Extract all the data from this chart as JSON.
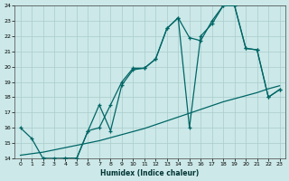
{
  "xlabel": "Humidex (Indice chaleur)",
  "background_color": "#cce8e8",
  "grid_color": "#aacccc",
  "line_color": "#006666",
  "xlim": [
    -0.5,
    23.5
  ],
  "ylim": [
    14,
    24
  ],
  "xticks": [
    0,
    1,
    2,
    3,
    4,
    5,
    6,
    7,
    8,
    9,
    10,
    11,
    12,
    13,
    14,
    15,
    16,
    17,
    18,
    19,
    20,
    21,
    22,
    23
  ],
  "yticks": [
    14,
    15,
    16,
    17,
    18,
    19,
    20,
    21,
    22,
    23,
    24
  ],
  "line1_x": [
    0,
    1,
    2,
    3,
    4,
    5,
    6,
    7,
    8,
    9,
    10,
    11,
    12,
    13,
    14,
    15,
    16,
    17,
    18,
    19,
    20,
    21,
    22,
    23
  ],
  "line1_y": [
    16.0,
    15.3,
    14.0,
    14.0,
    14.0,
    14.0,
    15.8,
    16.0,
    17.5,
    19.0,
    19.9,
    19.9,
    20.5,
    22.5,
    23.2,
    21.9,
    21.7,
    23.0,
    24.0,
    24.0,
    21.2,
    21.1,
    18.0,
    18.5
  ],
  "line2_x": [
    2,
    3,
    4,
    5,
    6,
    7,
    8,
    9,
    10,
    11,
    12,
    13,
    14,
    15,
    16,
    17,
    18,
    19,
    20,
    21,
    22,
    23
  ],
  "line2_y": [
    14.0,
    13.9,
    14.0,
    14.0,
    15.8,
    17.5,
    15.8,
    18.8,
    19.8,
    19.9,
    20.5,
    22.5,
    23.2,
    16.0,
    22.0,
    22.8,
    24.0,
    24.0,
    21.2,
    21.1,
    18.0,
    18.5
  ],
  "line3_x": [
    0,
    1,
    2,
    3,
    4,
    5,
    6,
    7,
    8,
    9,
    10,
    11,
    12,
    13,
    14,
    15,
    16,
    17,
    18,
    19,
    20,
    21,
    22,
    23
  ],
  "line3_y": [
    14.2,
    14.3,
    14.4,
    14.55,
    14.7,
    14.85,
    15.0,
    15.15,
    15.35,
    15.55,
    15.75,
    15.95,
    16.2,
    16.45,
    16.7,
    16.95,
    17.2,
    17.45,
    17.7,
    17.9,
    18.1,
    18.3,
    18.55,
    18.75
  ]
}
